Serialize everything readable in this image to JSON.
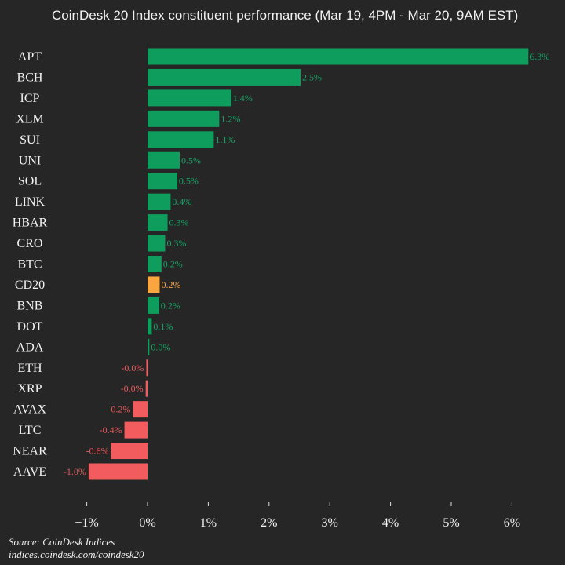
{
  "chart_data": {
    "type": "bar",
    "orientation": "horizontal",
    "title": "CoinDesk 20 Index constituent performance (Mar 19, 4PM - Mar 20, 9AM EST)",
    "categories": [
      "APT",
      "BCH",
      "ICP",
      "XLM",
      "SUI",
      "UNI",
      "SOL",
      "LINK",
      "HBAR",
      "CRO",
      "BTC",
      "CD20",
      "BNB",
      "DOT",
      "ADA",
      "ETH",
      "XRP",
      "AVAX",
      "LTC",
      "NEAR",
      "AAVE"
    ],
    "values": [
      6.27,
      2.52,
      1.38,
      1.18,
      1.09,
      0.53,
      0.49,
      0.38,
      0.33,
      0.29,
      0.23,
      0.2,
      0.19,
      0.07,
      0.03,
      -0.02,
      -0.03,
      -0.24,
      -0.38,
      -0.6,
      -0.97
    ],
    "value_labels": [
      "6.3%",
      "2.5%",
      "1.4%",
      "1.2%",
      "1.1%",
      "0.5%",
      "0.5%",
      "0.4%",
      "0.3%",
      "0.3%",
      "0.2%",
      "0.2%",
      "0.2%",
      "0.1%",
      "0.0%",
      "-0.0%",
      "-0.0%",
      "-0.2%",
      "-0.4%",
      "-0.6%",
      "-1.0%"
    ],
    "highlight": "CD20",
    "xlim": [
      -1.1,
      6.6
    ],
    "xticks": [
      -1,
      0,
      1,
      2,
      3,
      4,
      5,
      6
    ],
    "xtick_labels": [
      "−1%",
      "0%",
      "1%",
      "2%",
      "3%",
      "4%",
      "5%",
      "6%"
    ],
    "colors": {
      "positive": "#0f9d5e",
      "negative": "#f25c5f",
      "highlight": "#f9a640",
      "positive_text": "#14a464",
      "negative_text": "#e8585b",
      "highlight_text": "#f9a640"
    },
    "grid": false
  },
  "source_line1": "Source: CoinDesk Indices",
  "source_line2": "indices.coindesk.com/coindesk20"
}
